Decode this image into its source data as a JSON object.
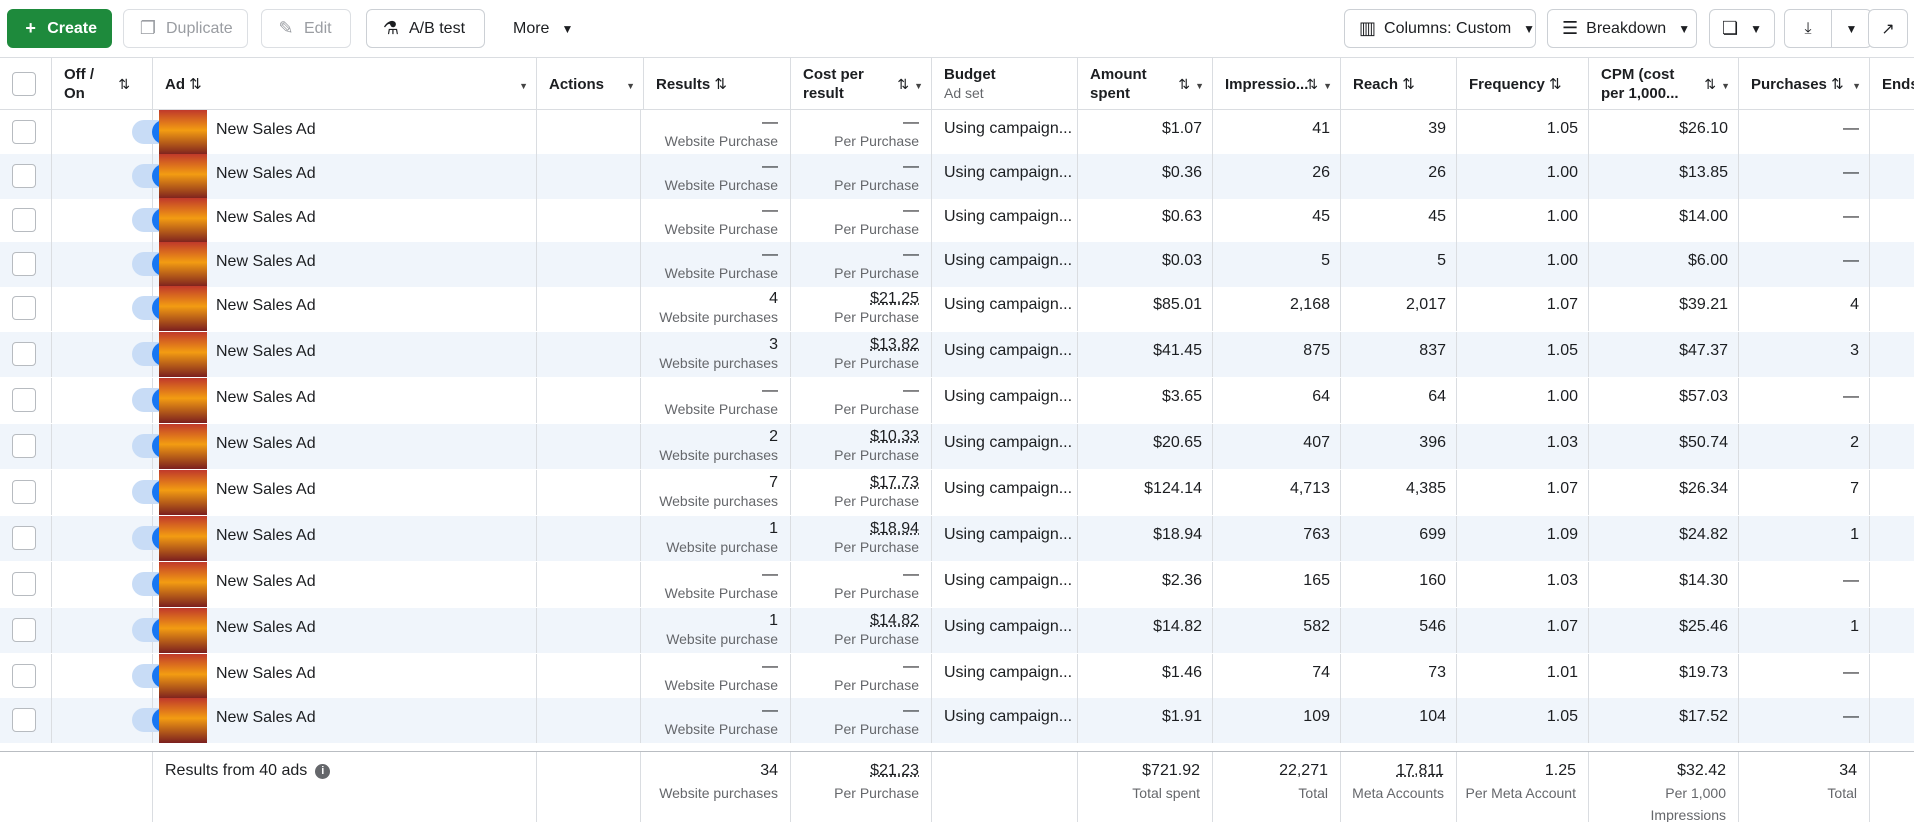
{
  "toolbar": {
    "create": "Create",
    "duplicate": "Duplicate",
    "edit": "Edit",
    "ab_test": "A/B test",
    "more": "More",
    "columns": "Columns: Custom",
    "breakdown": "Breakdown"
  },
  "headers": {
    "off_on": "Off / On",
    "ad": "Ad",
    "actions": "Actions",
    "results": "Results",
    "cost_per_result": "Cost per result",
    "budget": "Budget",
    "budget_sub": "Ad set",
    "amount_spent": "Amount spent",
    "impressions": "Impressio...",
    "reach": "Reach",
    "frequency": "Frequency",
    "cpm": "CPM (cost per 1,000...",
    "purchases": "Purchases",
    "ends": "Ends"
  },
  "rows": [
    {
      "name": "New Sales Ad",
      "results": "—",
      "results_sub": "Website Purchase",
      "cost": "—",
      "cost_sub": "Per Purchase",
      "budget": "Using campaign...",
      "spent": "$1.07",
      "impressions": "41",
      "reach": "39",
      "frequency": "1.05",
      "cpm": "$26.10",
      "purchases": "—"
    },
    {
      "name": "New Sales Ad",
      "results": "—",
      "results_sub": "Website Purchase",
      "cost": "—",
      "cost_sub": "Per Purchase",
      "budget": "Using campaign...",
      "spent": "$0.36",
      "impressions": "26",
      "reach": "26",
      "frequency": "1.00",
      "cpm": "$13.85",
      "purchases": "—"
    },
    {
      "name": "New Sales Ad",
      "results": "—",
      "results_sub": "Website Purchase",
      "cost": "—",
      "cost_sub": "Per Purchase",
      "budget": "Using campaign...",
      "spent": "$0.63",
      "impressions": "45",
      "reach": "45",
      "frequency": "1.00",
      "cpm": "$14.00",
      "purchases": "—"
    },
    {
      "name": "New Sales Ad",
      "results": "—",
      "results_sub": "Website Purchase",
      "cost": "—",
      "cost_sub": "Per Purchase",
      "budget": "Using campaign...",
      "spent": "$0.03",
      "impressions": "5",
      "reach": "5",
      "frequency": "1.00",
      "cpm": "$6.00",
      "purchases": "—"
    },
    {
      "name": "New Sales Ad",
      "results": "4",
      "results_sub": "Website purchases",
      "cost": "$21.25",
      "cost_sub": "Per Purchase",
      "budget": "Using campaign...",
      "spent": "$85.01",
      "impressions": "2,168",
      "reach": "2,017",
      "frequency": "1.07",
      "cpm": "$39.21",
      "purchases": "4"
    },
    {
      "name": "New Sales Ad",
      "results": "3",
      "results_sub": "Website purchases",
      "cost": "$13.82",
      "cost_sub": "Per Purchase",
      "budget": "Using campaign...",
      "spent": "$41.45",
      "impressions": "875",
      "reach": "837",
      "frequency": "1.05",
      "cpm": "$47.37",
      "purchases": "3"
    },
    {
      "name": "New Sales Ad",
      "results": "—",
      "results_sub": "Website Purchase",
      "cost": "—",
      "cost_sub": "Per Purchase",
      "budget": "Using campaign...",
      "spent": "$3.65",
      "impressions": "64",
      "reach": "64",
      "frequency": "1.00",
      "cpm": "$57.03",
      "purchases": "—"
    },
    {
      "name": "New Sales Ad",
      "results": "2",
      "results_sub": "Website purchases",
      "cost": "$10.33",
      "cost_sub": "Per Purchase",
      "budget": "Using campaign...",
      "spent": "$20.65",
      "impressions": "407",
      "reach": "396",
      "frequency": "1.03",
      "cpm": "$50.74",
      "purchases": "2"
    },
    {
      "name": "New Sales Ad",
      "results": "7",
      "results_sub": "Website purchases",
      "cost": "$17.73",
      "cost_sub": "Per Purchase",
      "budget": "Using campaign...",
      "spent": "$124.14",
      "impressions": "4,713",
      "reach": "4,385",
      "frequency": "1.07",
      "cpm": "$26.34",
      "purchases": "7"
    },
    {
      "name": "New Sales Ad",
      "results": "1",
      "results_sub": "Website purchase",
      "cost": "$18.94",
      "cost_sub": "Per Purchase",
      "budget": "Using campaign...",
      "spent": "$18.94",
      "impressions": "763",
      "reach": "699",
      "frequency": "1.09",
      "cpm": "$24.82",
      "purchases": "1"
    },
    {
      "name": "New Sales Ad",
      "results": "—",
      "results_sub": "Website Purchase",
      "cost": "—",
      "cost_sub": "Per Purchase",
      "budget": "Using campaign...",
      "spent": "$2.36",
      "impressions": "165",
      "reach": "160",
      "frequency": "1.03",
      "cpm": "$14.30",
      "purchases": "—"
    },
    {
      "name": "New Sales Ad",
      "results": "1",
      "results_sub": "Website purchase",
      "cost": "$14.82",
      "cost_sub": "Per Purchase",
      "budget": "Using campaign...",
      "spent": "$14.82",
      "impressions": "582",
      "reach": "546",
      "frequency": "1.07",
      "cpm": "$25.46",
      "purchases": "1"
    },
    {
      "name": "New Sales Ad",
      "results": "—",
      "results_sub": "Website Purchase",
      "cost": "—",
      "cost_sub": "Per Purchase",
      "budget": "Using campaign...",
      "spent": "$1.46",
      "impressions": "74",
      "reach": "73",
      "frequency": "1.01",
      "cpm": "$19.73",
      "purchases": "—"
    },
    {
      "name": "New Sales Ad",
      "results": "—",
      "results_sub": "Website Purchase",
      "cost": "—",
      "cost_sub": "Per Purchase",
      "budget": "Using campaign...",
      "spent": "$1.91",
      "impressions": "109",
      "reach": "104",
      "frequency": "1.05",
      "cpm": "$17.52",
      "purchases": "—"
    }
  ],
  "footer": {
    "label": "Results from 40 ads",
    "results": "34",
    "results_sub": "Website purchases",
    "cost": "$21.23",
    "cost_sub": "Per Purchase",
    "spent": "$721.92",
    "spent_sub": "Total spent",
    "impressions": "22,271",
    "impressions_sub": "Total",
    "reach": "17,811",
    "reach_sub": "Meta Accounts",
    "frequency": "1.25",
    "frequency_sub": "Per Meta Account",
    "cpm": "$32.42",
    "cpm_sub": "Per 1,000 Impressions",
    "purchases": "34",
    "purchases_sub": "Total"
  },
  "colors": {
    "create": "#1e8a3c",
    "toggle": "#1877f2",
    "row_alt": "#f0f5fb"
  },
  "icons": [
    "plus-icon",
    "duplicate-icon",
    "pencil-icon",
    "flask-icon",
    "caret-down-icon",
    "columns-icon",
    "breakdown-icon",
    "reports-icon",
    "download-icon",
    "share-icon",
    "sort-icon",
    "info-icon"
  ]
}
